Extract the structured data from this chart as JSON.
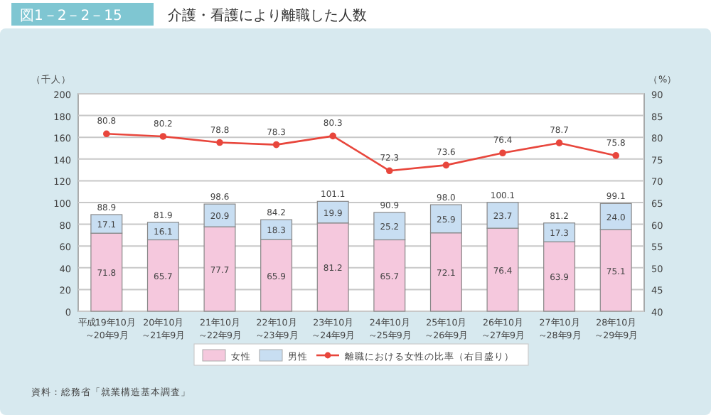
{
  "chart_data": {
    "type": "bar",
    "title": "介護・看護により離職した人数",
    "subtitle": "図1－2－2－15",
    "ylabel": "（千人）",
    "y2label": "（%）",
    "categories": [
      "平成19年10月～20年9月",
      "20年10月～21年9月",
      "21年10月～22年9月",
      "22年10月～23年9月",
      "23年10月～24年9月",
      "24年10月～25年9月",
      "25年10月～26年9月",
      "26年10月～27年9月",
      "27年10月～28年9月",
      "28年10月～29年9月"
    ],
    "stacked": true,
    "series": [
      {
        "name": "女性",
        "color": "#f5c8dd",
        "values": [
          71.8,
          65.7,
          77.7,
          65.9,
          81.2,
          65.7,
          72.1,
          76.4,
          63.9,
          75.1
        ]
      },
      {
        "name": "男性",
        "color": "#c8def2",
        "values": [
          17.1,
          16.1,
          20.9,
          18.3,
          19.9,
          25.2,
          25.9,
          23.7,
          17.3,
          24.0
        ],
        "value_labels": [
          "17.1",
          "16.1",
          "20.9",
          "18.3",
          "19.9",
          "25.2",
          "25.9",
          "23.7",
          "17.3",
          "24.0"
        ]
      },
      {
        "name": "離職における女性の比率（右目盛り）",
        "type": "line",
        "axis": "y2",
        "color": "#e8463c",
        "marker": "circle",
        "values": [
          80.8,
          80.2,
          78.8,
          78.3,
          80.3,
          72.3,
          73.6,
          76.4,
          78.7,
          75.8
        ]
      }
    ],
    "totals": [
      "88.9",
      "81.9",
      "98.6",
      "84.2",
      "101.1",
      "90.9",
      "98.0",
      "100.1",
      "81.2",
      "99.1"
    ],
    "data_labels": true,
    "ylim": [
      0,
      200
    ],
    "yticks": [
      0,
      20,
      40,
      60,
      80,
      100,
      120,
      140,
      160,
      180,
      200
    ],
    "y2lim": [
      40,
      90
    ],
    "y2ticks": [
      40,
      45,
      50,
      55,
      60,
      65,
      70,
      75,
      80,
      85,
      90
    ],
    "grid": "y",
    "legend": "bottom",
    "annotations": [
      "資料：総務省「就業構造基本調査」"
    ]
  }
}
